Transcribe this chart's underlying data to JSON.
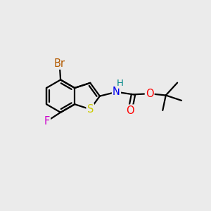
{
  "bg_color": "#ebebeb",
  "bond_color": "#000000",
  "bond_width": 1.6,
  "atom_colors": {
    "Br": "#b35a00",
    "F": "#cc00cc",
    "S": "#cccc00",
    "N": "#0000ee",
    "H": "#008888",
    "O": "#ff0000",
    "C": "#000000"
  },
  "font_size": 10.5,
  "fig_size": [
    3.0,
    3.0
  ],
  "dpi": 100
}
